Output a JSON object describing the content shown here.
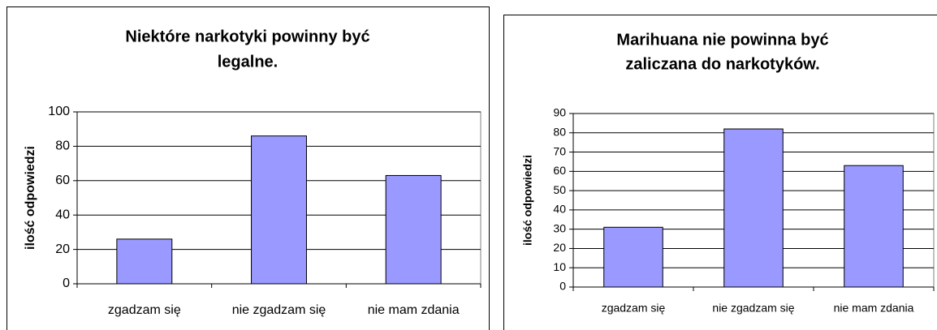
{
  "chart_data": [
    {
      "type": "bar",
      "title": [
        "Niektóre narkotyki powinny być",
        "legalne."
      ],
      "y_label": "ilość odpowiedzi",
      "categories": [
        "zgadzam się",
        "nie zgadzam się",
        "nie mam zdania"
      ],
      "values": [
        26,
        86,
        63
      ],
      "color": "#9999ff",
      "ylim": [
        0,
        100
      ],
      "yticks": [
        0,
        20,
        40,
        60,
        80,
        100
      ],
      "grid": true
    },
    {
      "type": "bar",
      "title": [
        "Marihuana nie powinna być",
        "zaliczana do narkotyków."
      ],
      "y_label": "ilość odpowiedzi",
      "categories": [
        "zgadzam się",
        "nie zgadzam się",
        "nie mam zdania"
      ],
      "values": [
        31,
        82,
        63
      ],
      "color": "#9999ff",
      "ylim": [
        0,
        90
      ],
      "yticks": [
        0,
        10,
        20,
        30,
        40,
        50,
        60,
        70,
        80,
        90
      ],
      "grid": true
    }
  ]
}
